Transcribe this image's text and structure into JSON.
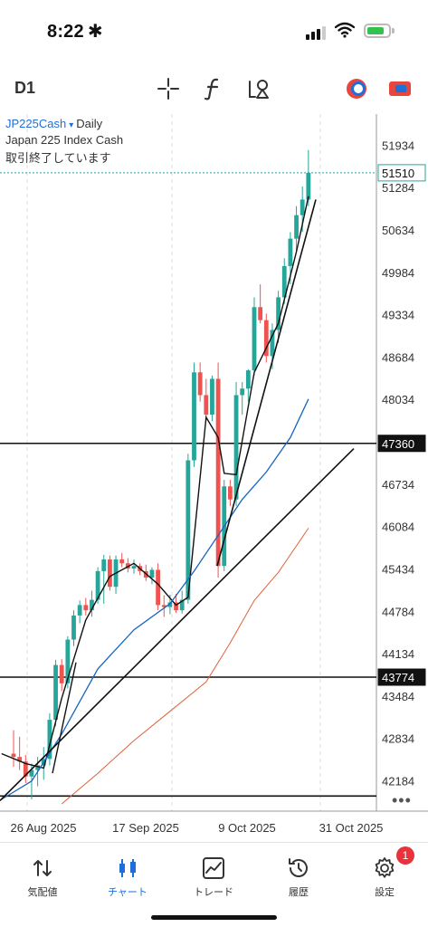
{
  "status_bar": {
    "time": "8:22",
    "icon_after_time": "✱"
  },
  "toolbar": {
    "timeframe": "D1"
  },
  "chart": {
    "symbol": "JP225Cash",
    "dropdown_glyph": "▾",
    "period": "Daily",
    "description": "Japan 225 Index Cash",
    "market_status": "取引終了しています",
    "more_glyph": "•••",
    "colors": {
      "bull": "#26a69a",
      "bear": "#ef5350",
      "ma_fast": "#111111",
      "ma_mid": "#1565c0",
      "ma_slow": "#e0623b",
      "grid": "#dddddd",
      "bid_line": "#26a69a"
    }
  },
  "chart_data": {
    "type": "candlestick",
    "y_ticks": [
      "51934",
      "51284",
      "50634",
      "49984",
      "49334",
      "48684",
      "48034",
      "46734",
      "46084",
      "45434",
      "44784",
      "44134",
      "43484",
      "42834",
      "42184"
    ],
    "x_ticks": [
      "26 Aug 2025",
      "17 Sep 2025",
      "9 Oct 2025",
      "31 Oct 2025"
    ],
    "price_labels": {
      "current": "51510",
      "level_1": "47360",
      "level_2": "43774"
    },
    "ylim": [
      41830,
      52300
    ],
    "horizontal_levels": [
      47360,
      43774,
      41950
    ]
  },
  "tabs": [
    {
      "label": "気配値",
      "icon": "quotes-icon"
    },
    {
      "label": "チャート",
      "icon": "chart-icon",
      "active": true
    },
    {
      "label": "トレード",
      "icon": "trade-icon"
    },
    {
      "label": "履歴",
      "icon": "history-icon"
    },
    {
      "label": "設定",
      "icon": "settings-icon",
      "badge": "1"
    }
  ]
}
